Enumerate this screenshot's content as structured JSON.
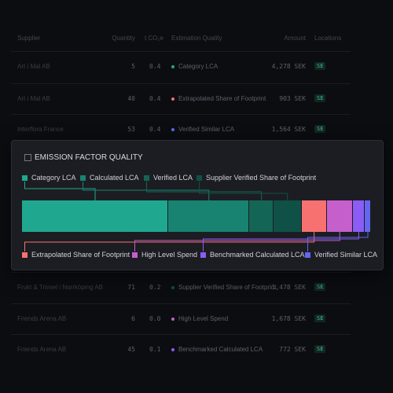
{
  "table": {
    "columns": [
      "Supplier",
      "Quantity",
      "t CO₂e",
      "Estimation Quality",
      "Amount",
      "Locations"
    ],
    "rows": [
      [
        "Art i Mal AB",
        "5",
        "0.4",
        "Category LCA",
        "4,278 SEK",
        "SE"
      ],
      [
        "Art i Mal AB",
        "40",
        "0.4",
        "Extrapolated Share of Footprint",
        "903 SEK",
        "SE"
      ],
      [
        "Interflora France",
        "53",
        "0.4",
        "Verified Similar LCA",
        "1,564 SEK",
        "SE"
      ],
      [
        "Frukt & Trivsel i Norrköping AB",
        "71",
        "0.2",
        "Supplier Verified Share of Footprint",
        "1,478 SEK",
        "SE"
      ],
      [
        "Friends Arena AB",
        "6",
        "0.0",
        "High Level Spend",
        "1,678 SEK",
        "SE"
      ],
      [
        "Friends Arena AB",
        "45",
        "0.1",
        "Benchmarked Calculated LCA",
        "772 SEK",
        "SE"
      ]
    ]
  },
  "card": {
    "title": "EMISSION FACTOR QUALITY",
    "segments": [
      {
        "name": "Category LCA",
        "color": "#1fa88f",
        "value": 41.9
      },
      {
        "name": "Calculated LCA",
        "color": "#188371",
        "value": 23.3
      },
      {
        "name": "Verified LCA",
        "color": "#136555",
        "value": 6.8
      },
      {
        "name": "Supplier Verified Share of Footprint",
        "color": "#0f5147",
        "value": 8.1
      },
      {
        "name": "Extrapolated Share of Footprint",
        "color": "#f87171",
        "value": 7.2
      },
      {
        "name": "High Level Spend",
        "color": "#c55fcc",
        "value": 7.5
      },
      {
        "name": "Benchmarked Calculated LCA",
        "color": "#8b5cf6",
        "value": 3.4
      },
      {
        "name": "Verified Similar LCA",
        "color": "#6366f1",
        "value": 1.8
      }
    ]
  }
}
